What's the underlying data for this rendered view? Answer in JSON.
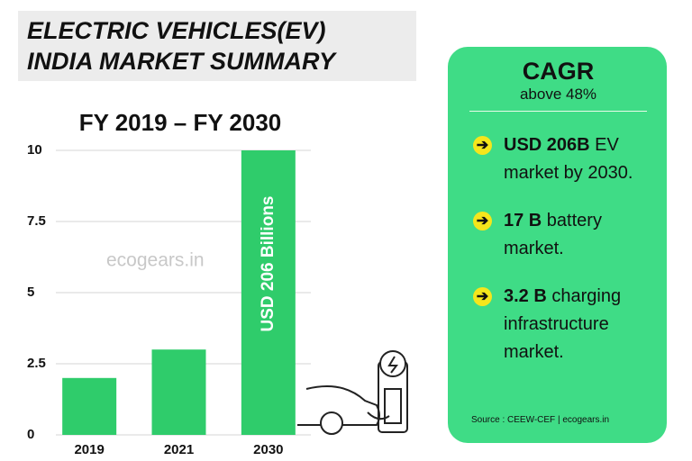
{
  "chart_data": {
    "type": "bar",
    "title": [
      "ELECTRIC VEHICLES(EV)",
      "INDIA MARKET SUMMARY"
    ],
    "subtitle": "FY 2019 – FY 2030",
    "categories": [
      "2019",
      "2021",
      "2030"
    ],
    "values": [
      2,
      3,
      10
    ],
    "color": "#2fcc6b",
    "ylim": [
      0,
      10
    ],
    "yticks": [
      0,
      2.5,
      5,
      7.5,
      10
    ],
    "grid": true,
    "annotation": "USD 206 Billions",
    "watermark": "ecogears.in"
  },
  "panel": {
    "heading": "CAGR",
    "subheading": "above 48%",
    "bullets": [
      {
        "bold": "USD 206B",
        "text": " EV market by 2030."
      },
      {
        "bold": "17 B",
        "text": " battery market."
      },
      {
        "bold": "3.2 B",
        "text": " charging infrastructure market."
      }
    ],
    "source": "Source : CEEW-CEF | ecogears.in"
  }
}
